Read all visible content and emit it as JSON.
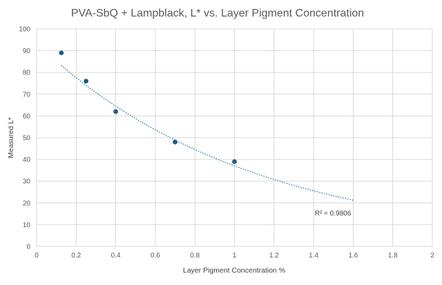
{
  "chart_data": {
    "type": "scatter",
    "title": "PVA-SbQ + Lampblack, L* vs. Layer Pigment Concentration",
    "xlabel": "Layer Pigment Concentration %",
    "ylabel": "Measured L*",
    "xlim": [
      0,
      2
    ],
    "ylim": [
      0,
      100
    ],
    "x_ticks": [
      "0",
      "0.2",
      "0.4",
      "0.6",
      "0.8",
      "1",
      "1.2",
      "1.4",
      "1.6",
      "1.8",
      "2"
    ],
    "y_ticks": [
      "0",
      "10",
      "20",
      "30",
      "40",
      "50",
      "60",
      "70",
      "80",
      "90",
      "100"
    ],
    "grid": true,
    "legend": "none",
    "series": [
      {
        "x": [
          0.125,
          0.25,
          0.4,
          0.7,
          1.0
        ],
        "y": [
          89,
          76,
          62,
          48,
          39
        ],
        "color": "#1f5c85"
      }
    ],
    "trendline": {
      "type": "exponential",
      "a": 93.36,
      "b": -0.9246,
      "x_range": [
        0.125,
        1.6
      ],
      "style": "dotted",
      "color": "#1f6f9a",
      "r2_label": "R² = 0.9806"
    }
  }
}
